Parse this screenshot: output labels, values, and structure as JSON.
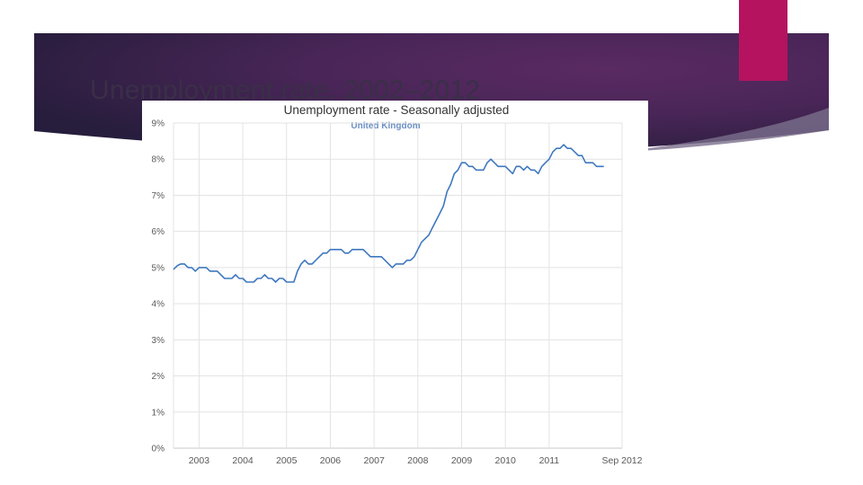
{
  "slide": {
    "title": "Unemployment rate, 2002–2012",
    "accent_color": "#b5135f",
    "banner_color": "#3b2450"
  },
  "chart_data": {
    "type": "line",
    "title": "Unemployment rate - Seasonally adjusted",
    "subtitle": "United Kingdom",
    "ylim": [
      0,
      9
    ],
    "y_ticks": [
      "0%",
      "1%",
      "2%",
      "3%",
      "4%",
      "5%",
      "6%",
      "7%",
      "8%",
      "9%"
    ],
    "x_range": [
      "2002-06",
      "2012-09"
    ],
    "x_ticks": [
      {
        "label": "2003",
        "date": "2003-01"
      },
      {
        "label": "2004",
        "date": "2004-01"
      },
      {
        "label": "2005",
        "date": "2005-01"
      },
      {
        "label": "2006",
        "date": "2006-01"
      },
      {
        "label": "2007",
        "date": "2007-01"
      },
      {
        "label": "2008",
        "date": "2008-01"
      },
      {
        "label": "2009",
        "date": "2009-01"
      },
      {
        "label": "2010",
        "date": "2010-01"
      },
      {
        "label": "2011",
        "date": "2011-01"
      },
      {
        "label": "Sep 2012",
        "date": "2012-09"
      }
    ],
    "grid": true,
    "line_color": "#3f78c0",
    "series": [
      {
        "points": [
          [
            "2002-06",
            4.95
          ],
          [
            "2002-07",
            5.05
          ],
          [
            "2002-08",
            5.1
          ],
          [
            "2002-09",
            5.1
          ],
          [
            "2002-10",
            5.0
          ],
          [
            "2002-11",
            5.0
          ],
          [
            "2002-12",
            4.9
          ],
          [
            "2003-01",
            5.0
          ],
          [
            "2003-02",
            5.0
          ],
          [
            "2003-03",
            5.0
          ],
          [
            "2003-04",
            4.9
          ],
          [
            "2003-05",
            4.9
          ],
          [
            "2003-06",
            4.9
          ],
          [
            "2003-07",
            4.8
          ],
          [
            "2003-08",
            4.7
          ],
          [
            "2003-09",
            4.7
          ],
          [
            "2003-10",
            4.7
          ],
          [
            "2003-11",
            4.8
          ],
          [
            "2003-12",
            4.7
          ],
          [
            "2004-01",
            4.7
          ],
          [
            "2004-02",
            4.6
          ],
          [
            "2004-03",
            4.6
          ],
          [
            "2004-04",
            4.6
          ],
          [
            "2004-05",
            4.7
          ],
          [
            "2004-06",
            4.7
          ],
          [
            "2004-07",
            4.8
          ],
          [
            "2004-08",
            4.7
          ],
          [
            "2004-09",
            4.7
          ],
          [
            "2004-10",
            4.6
          ],
          [
            "2004-11",
            4.7
          ],
          [
            "2004-12",
            4.7
          ],
          [
            "2005-01",
            4.6
          ],
          [
            "2005-02",
            4.6
          ],
          [
            "2005-03",
            4.6
          ],
          [
            "2005-04",
            4.9
          ],
          [
            "2005-05",
            5.1
          ],
          [
            "2005-06",
            5.2
          ],
          [
            "2005-07",
            5.1
          ],
          [
            "2005-08",
            5.1
          ],
          [
            "2005-09",
            5.2
          ],
          [
            "2005-10",
            5.3
          ],
          [
            "2005-11",
            5.4
          ],
          [
            "2005-12",
            5.4
          ],
          [
            "2006-01",
            5.5
          ],
          [
            "2006-02",
            5.5
          ],
          [
            "2006-03",
            5.5
          ],
          [
            "2006-04",
            5.5
          ],
          [
            "2006-05",
            5.4
          ],
          [
            "2006-06",
            5.4
          ],
          [
            "2006-07",
            5.5
          ],
          [
            "2006-08",
            5.5
          ],
          [
            "2006-09",
            5.5
          ],
          [
            "2006-10",
            5.5
          ],
          [
            "2006-11",
            5.4
          ],
          [
            "2006-12",
            5.3
          ],
          [
            "2007-01",
            5.3
          ],
          [
            "2007-02",
            5.3
          ],
          [
            "2007-03",
            5.3
          ],
          [
            "2007-04",
            5.2
          ],
          [
            "2007-05",
            5.1
          ],
          [
            "2007-06",
            5.0
          ],
          [
            "2007-07",
            5.1
          ],
          [
            "2007-08",
            5.1
          ],
          [
            "2007-09",
            5.1
          ],
          [
            "2007-10",
            5.2
          ],
          [
            "2007-11",
            5.2
          ],
          [
            "2007-12",
            5.3
          ],
          [
            "2008-01",
            5.5
          ],
          [
            "2008-02",
            5.7
          ],
          [
            "2008-03",
            5.8
          ],
          [
            "2008-04",
            5.9
          ],
          [
            "2008-05",
            6.1
          ],
          [
            "2008-06",
            6.3
          ],
          [
            "2008-07",
            6.5
          ],
          [
            "2008-08",
            6.7
          ],
          [
            "2008-09",
            7.1
          ],
          [
            "2008-10",
            7.3
          ],
          [
            "2008-11",
            7.6
          ],
          [
            "2008-12",
            7.7
          ],
          [
            "2009-01",
            7.9
          ],
          [
            "2009-02",
            7.9
          ],
          [
            "2009-03",
            7.8
          ],
          [
            "2009-04",
            7.8
          ],
          [
            "2009-05",
            7.7
          ],
          [
            "2009-06",
            7.7
          ],
          [
            "2009-07",
            7.7
          ],
          [
            "2009-08",
            7.9
          ],
          [
            "2009-09",
            8.0
          ],
          [
            "2009-10",
            7.9
          ],
          [
            "2009-11",
            7.8
          ],
          [
            "2009-12",
            7.8
          ],
          [
            "2010-01",
            7.8
          ],
          [
            "2010-02",
            7.7
          ],
          [
            "2010-03",
            7.6
          ],
          [
            "2010-04",
            7.8
          ],
          [
            "2010-05",
            7.8
          ],
          [
            "2010-06",
            7.7
          ],
          [
            "2010-07",
            7.8
          ],
          [
            "2010-08",
            7.7
          ],
          [
            "2010-09",
            7.7
          ],
          [
            "2010-10",
            7.6
          ],
          [
            "2010-11",
            7.8
          ],
          [
            "2010-12",
            7.9
          ],
          [
            "2011-01",
            8.0
          ],
          [
            "2011-02",
            8.2
          ],
          [
            "2011-03",
            8.3
          ],
          [
            "2011-04",
            8.3
          ],
          [
            "2011-05",
            8.4
          ],
          [
            "2011-06",
            8.3
          ],
          [
            "2011-07",
            8.3
          ],
          [
            "2011-08",
            8.2
          ],
          [
            "2011-09",
            8.1
          ],
          [
            "2011-10",
            8.1
          ],
          [
            "2011-11",
            7.9
          ],
          [
            "2011-12",
            7.9
          ],
          [
            "2012-01",
            7.9
          ],
          [
            "2012-02",
            7.8
          ],
          [
            "2012-03",
            7.8
          ],
          [
            "2012-04",
            7.8
          ]
        ]
      }
    ]
  }
}
